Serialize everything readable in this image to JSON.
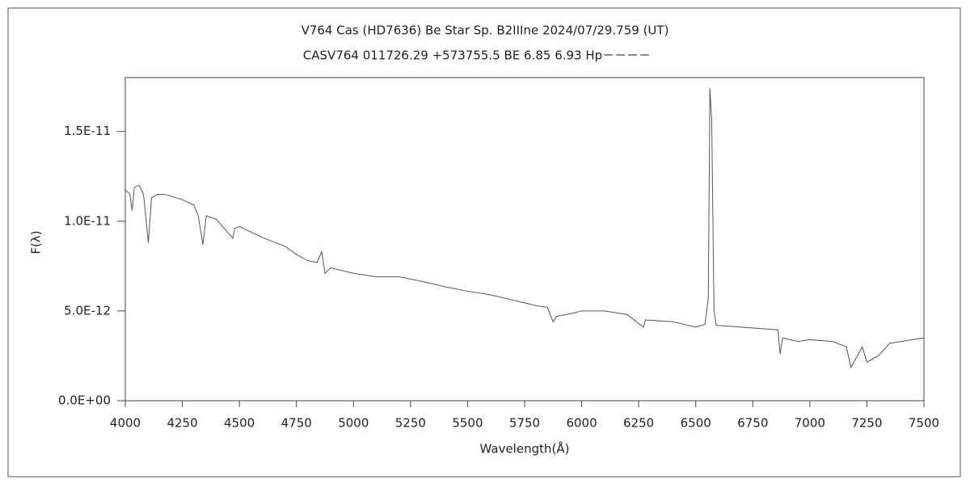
{
  "chart_data": {
    "type": "line",
    "title": "V764 Cas (HD7636)    Be Star    Sp. B2IIIne    2024/07/29.759 (UT)",
    "subtitle": "CASV764 011726.29 +573755.5 BE 6.85 6.93 Hp－－－－",
    "xlabel": "Wavelength(Å)",
    "ylabel": "F(λ)",
    "xlim": [
      4000,
      7500
    ],
    "xticks": [
      4000,
      4250,
      4500,
      4750,
      5000,
      5250,
      5500,
      5750,
      6000,
      6250,
      6500,
      6750,
      7000,
      7250,
      7500
    ],
    "ylim": [
      0,
      1.8e-11
    ],
    "yticks": [
      {
        "value": 0,
        "label": "0.0E+00"
      },
      {
        "value": 5e-12,
        "label": "5.0E-12"
      },
      {
        "value": 1e-11,
        "label": "1.0E-11"
      },
      {
        "value": 1.5e-11,
        "label": "1.5E-11"
      }
    ],
    "grid": false,
    "series": [
      {
        "color": "#555555",
        "x": [
          4000,
          4020,
          4030,
          4040,
          4060,
          4080,
          4101,
          4115,
          4140,
          4170,
          4200,
          4250,
          4300,
          4320,
          4340,
          4355,
          4400,
          4471,
          4480,
          4500,
          4600,
          4700,
          4750,
          4800,
          4840,
          4861,
          4875,
          4900,
          5000,
          5100,
          5200,
          5300,
          5400,
          5500,
          5600,
          5700,
          5800,
          5850,
          5875,
          5890,
          5950,
          6000,
          6100,
          6200,
          6270,
          6280,
          6400,
          6500,
          6540,
          6555,
          6562,
          6570,
          6580,
          6590,
          6700,
          6860,
          6870,
          6880,
          6950,
          7000,
          7100,
          7160,
          7180,
          7200,
          7230,
          7250,
          7300,
          7350,
          7400,
          7500
        ],
        "values": [
          1.176e-11,
          1.15e-11,
          1.06e-11,
          1.19e-11,
          1.2e-11,
          1.15e-11,
          8.8e-12,
          1.13e-11,
          1.15e-11,
          1.15e-11,
          1.14e-11,
          1.12e-11,
          1.09e-11,
          1.03e-11,
          8.7e-12,
          1.03e-11,
          1.01e-11,
          9.05e-12,
          9.6e-12,
          9.7e-12,
          9.1e-12,
          8.6e-12,
          8.15e-12,
          7.8e-12,
          7.7e-12,
          8.3e-12,
          7.1e-12,
          7.4e-12,
          7.1e-12,
          6.9e-12,
          6.9e-12,
          6.65e-12,
          6.35e-12,
          6.1e-12,
          5.9e-12,
          5.6e-12,
          5.3e-12,
          5.2e-12,
          4.4e-12,
          4.7e-12,
          4.85e-12,
          5e-12,
          5e-12,
          4.8e-12,
          4.1e-12,
          4.5e-12,
          4.4e-12,
          4.1e-12,
          4.25e-12,
          5.7e-12,
          1.74e-11,
          1.56e-11,
          5e-12,
          4.2e-12,
          4.1e-12,
          3.95e-12,
          2.6e-12,
          3.5e-12,
          3.3e-12,
          3.4e-12,
          3.3e-12,
          3e-12,
          1.85e-12,
          2.3e-12,
          3e-12,
          2.15e-12,
          2.5e-12,
          3.2e-12,
          3.3e-12,
          3.5e-12
        ]
      }
    ]
  }
}
